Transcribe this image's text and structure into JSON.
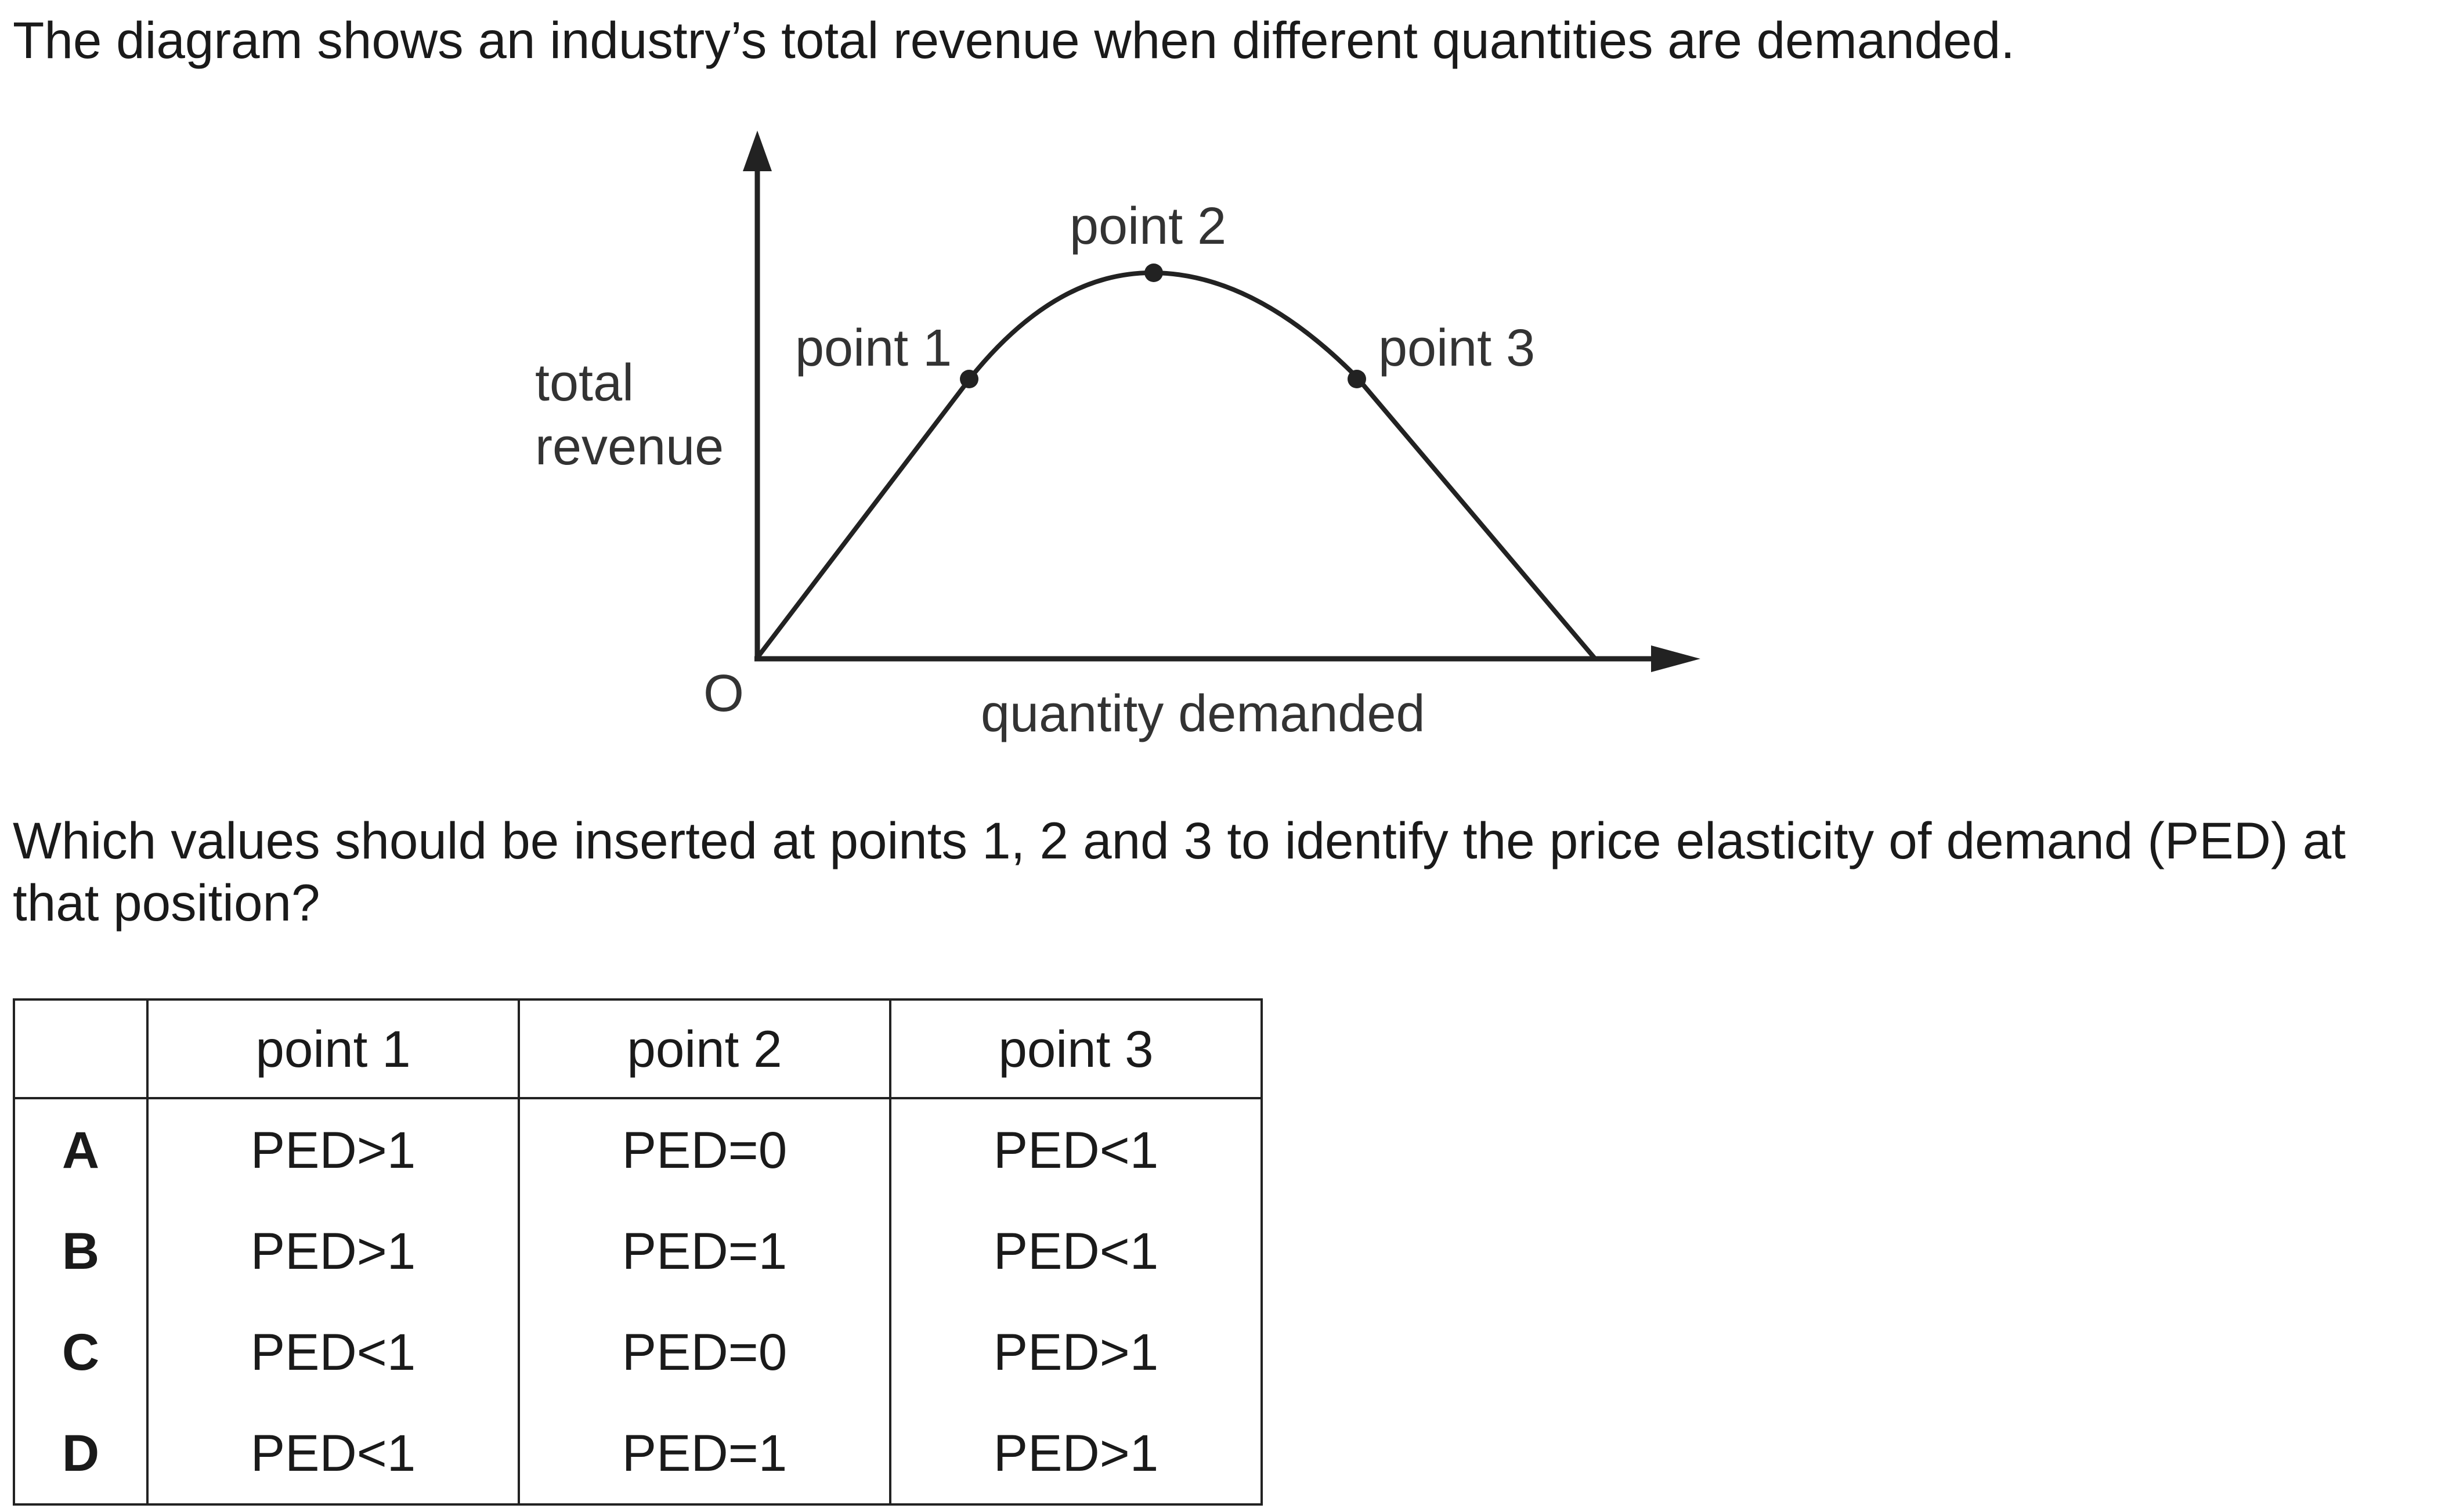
{
  "intro_text": "The diagram shows an industry’s total revenue when different quantities are demanded.",
  "diagram": {
    "y_axis_label_line1": "total",
    "y_axis_label_line2": "revenue",
    "x_axis_label": "quantity demanded",
    "origin_label": "O",
    "point_labels": [
      "point 1",
      "point 2",
      "point 3"
    ]
  },
  "question_text": "Which values should be inserted at points 1, 2 and 3 to identify the price elasticity of demand (PED) at that position?",
  "table": {
    "headers": [
      "",
      "point 1",
      "point 2",
      "point 3"
    ],
    "rows": [
      {
        "key": "A",
        "p1": "PED>1",
        "p2": "PED=0",
        "p3": "PED<1"
      },
      {
        "key": "B",
        "p1": "PED>1",
        "p2": "PED=1",
        "p3": "PED<1"
      },
      {
        "key": "C",
        "p1": "PED<1",
        "p2": "PED=0",
        "p3": "PED>1"
      },
      {
        "key": "D",
        "p1": "PED<1",
        "p2": "PED=1",
        "p3": "PED>1"
      }
    ]
  }
}
